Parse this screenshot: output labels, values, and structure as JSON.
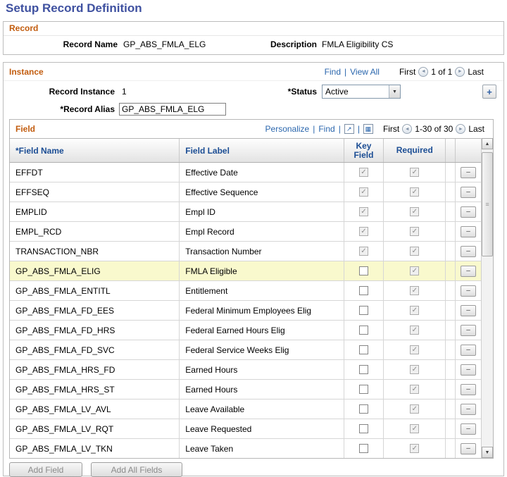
{
  "icons": {
    "prev": "◄",
    "next": "►",
    "check": "✓",
    "minus": "–",
    "plus": "+",
    "up_arrow": "▲",
    "down_arrow": "▼",
    "select_arrow": "▼",
    "popout": "↗",
    "grid": "▦",
    "thumb_grip": "≡"
  },
  "page": {
    "title": "Setup Record Definition"
  },
  "record": {
    "label": "Record",
    "record_name_label": "Record Name",
    "record_name_value": "GP_ABS_FMLA_ELG",
    "description_label": "Description",
    "description_value": "FMLA Eligibility CS"
  },
  "instance": {
    "label": "Instance",
    "find_link": "Find",
    "view_all_link": "View All",
    "nav_first": "First",
    "nav_position": "1 of 1",
    "nav_last": "Last",
    "record_instance_label": "Record Instance",
    "record_instance_value": "1",
    "status_label": "*Status",
    "status_value": "Active",
    "record_alias_label": "*Record Alias",
    "record_alias_value": "GP_ABS_FMLA_ELG"
  },
  "field_grid": {
    "label": "Field",
    "personalize_link": "Personalize",
    "find_link": "Find",
    "nav_first": "First",
    "nav_position": "1-30 of 30",
    "nav_last": "Last",
    "columns": {
      "field_name": "*Field Name",
      "field_label": "Field Label",
      "key_field": "Key Field",
      "required": "Required"
    },
    "rows": [
      {
        "field_name": "EFFDT",
        "field_label": "Effective Date",
        "key_checked": true,
        "key_disabled": true,
        "required_checked": true,
        "required_disabled": true,
        "highlight": false
      },
      {
        "field_name": "EFFSEQ",
        "field_label": "Effective Sequence",
        "key_checked": true,
        "key_disabled": true,
        "required_checked": true,
        "required_disabled": true,
        "highlight": false
      },
      {
        "field_name": "EMPLID",
        "field_label": "Empl ID",
        "key_checked": true,
        "key_disabled": true,
        "required_checked": true,
        "required_disabled": true,
        "highlight": false
      },
      {
        "field_name": "EMPL_RCD",
        "field_label": "Empl Record",
        "key_checked": true,
        "key_disabled": true,
        "required_checked": true,
        "required_disabled": true,
        "highlight": false
      },
      {
        "field_name": "TRANSACTION_NBR",
        "field_label": "Transaction Number",
        "key_checked": true,
        "key_disabled": true,
        "required_checked": true,
        "required_disabled": true,
        "highlight": false
      },
      {
        "field_name": "GP_ABS_FMLA_ELIG",
        "field_label": "FMLA Eligible",
        "key_checked": false,
        "key_disabled": false,
        "required_checked": true,
        "required_disabled": true,
        "highlight": true
      },
      {
        "field_name": "GP_ABS_FMLA_ENTITL",
        "field_label": "Entitlement",
        "key_checked": false,
        "key_disabled": false,
        "required_checked": true,
        "required_disabled": true,
        "highlight": false
      },
      {
        "field_name": "GP_ABS_FMLA_FD_EES",
        "field_label": "Federal Minimum Employees Elig",
        "key_checked": false,
        "key_disabled": false,
        "required_checked": true,
        "required_disabled": true,
        "highlight": false
      },
      {
        "field_name": "GP_ABS_FMLA_FD_HRS",
        "field_label": "Federal Earned Hours Elig",
        "key_checked": false,
        "key_disabled": false,
        "required_checked": true,
        "required_disabled": true,
        "highlight": false
      },
      {
        "field_name": "GP_ABS_FMLA_FD_SVC",
        "field_label": "Federal Service Weeks Elig",
        "key_checked": false,
        "key_disabled": false,
        "required_checked": true,
        "required_disabled": true,
        "highlight": false
      },
      {
        "field_name": "GP_ABS_FMLA_HRS_FD",
        "field_label": "Earned Hours",
        "key_checked": false,
        "key_disabled": false,
        "required_checked": true,
        "required_disabled": true,
        "highlight": false
      },
      {
        "field_name": "GP_ABS_FMLA_HRS_ST",
        "field_label": "Earned Hours",
        "key_checked": false,
        "key_disabled": false,
        "required_checked": true,
        "required_disabled": true,
        "highlight": false
      },
      {
        "field_name": "GP_ABS_FMLA_LV_AVL",
        "field_label": "Leave Available",
        "key_checked": false,
        "key_disabled": false,
        "required_checked": true,
        "required_disabled": true,
        "highlight": false
      },
      {
        "field_name": "GP_ABS_FMLA_LV_RQT",
        "field_label": "Leave Requested",
        "key_checked": false,
        "key_disabled": false,
        "required_checked": true,
        "required_disabled": true,
        "highlight": false
      },
      {
        "field_name": "GP_ABS_FMLA_LV_TKN",
        "field_label": "Leave Taken",
        "key_checked": false,
        "key_disabled": false,
        "required_checked": true,
        "required_disabled": true,
        "highlight": false
      }
    ]
  },
  "footer": {
    "add_field_label": "Add Field",
    "add_all_fields_label": "Add All Fields"
  }
}
